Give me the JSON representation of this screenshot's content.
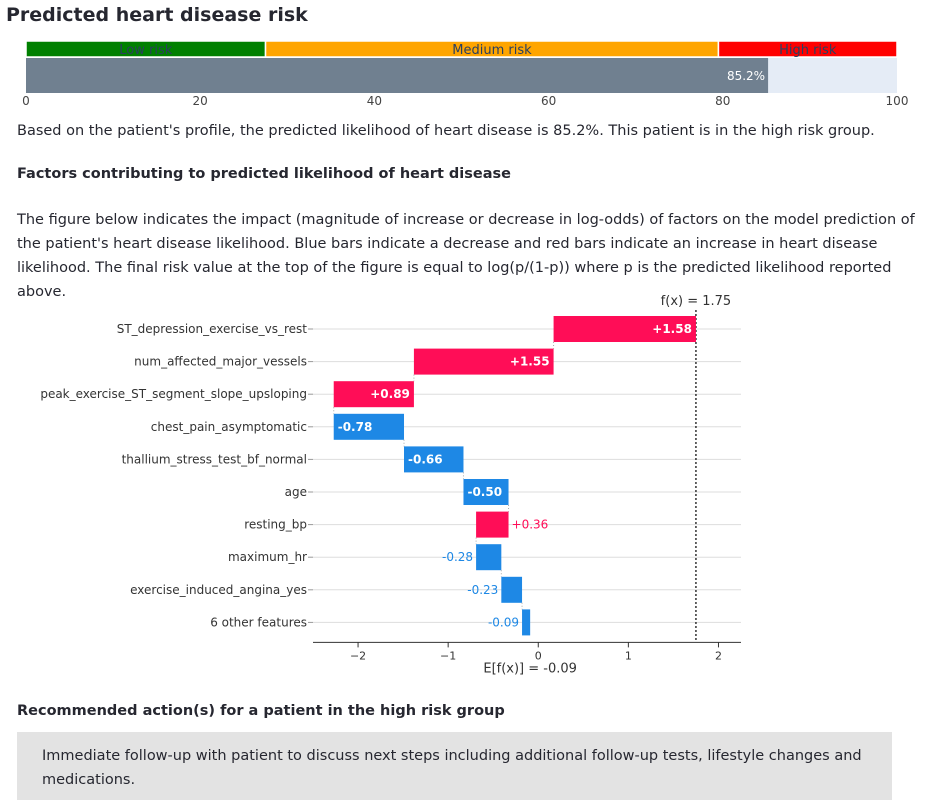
{
  "page_title": "Predicted heart disease risk",
  "gauge": {
    "bands": [
      {
        "label": "Low risk",
        "from": 0,
        "to": 27.5,
        "color": "#008000"
      },
      {
        "label": "Medium risk",
        "from": 27.5,
        "to": 79.5,
        "color": "#ffa500"
      },
      {
        "label": "High risk",
        "from": 79.5,
        "to": 100,
        "color": "#ff0000"
      }
    ],
    "value": 85.2,
    "value_label": "85.2%",
    "axis_min": 0,
    "axis_max": 100,
    "ticks": [
      0,
      20,
      40,
      60,
      80,
      100
    ],
    "bar_color": "#708090",
    "track_color": "#e5ecf6"
  },
  "summary_text": "Based on the patient's profile, the predicted likelihood of heart disease is 85.2%. This patient is in the high risk group.",
  "factors_heading": "Factors contributing to predicted likelihood of heart disease",
  "factors_description": "The figure below indicates the impact (magnitude of increase or decrease in log-odds) of factors on the model prediction of the patient's heart disease likelihood. Blue bars indicate a decrease and red bars indicate an increase in heart disease likelihood. The final risk value at the top of the figure is equal to log(p/(1-p)) where p is the predicted likelihood reported above.",
  "chart_data": {
    "type": "bar",
    "subtype": "waterfall",
    "fx_label": "f(x) = 1.75",
    "fx": 1.75,
    "efx_label": "E[f(x)] = -0.09",
    "efx": -0.09,
    "xlim": [
      -2.5,
      2.25
    ],
    "xticks": [
      -2,
      -1,
      0,
      1,
      2
    ],
    "positive_color": "#ff0d57",
    "negative_color": "#1e88e5",
    "features": [
      {
        "name": "ST_depression_exercise_vs_rest",
        "value": 1.58,
        "label": "+1.58"
      },
      {
        "name": "num_affected_major_vessels",
        "value": 1.55,
        "label": "+1.55"
      },
      {
        "name": "peak_exercise_ST_segment_slope_upsloping",
        "value": 0.89,
        "label": "+0.89"
      },
      {
        "name": "chest_pain_asymptomatic",
        "value": -0.78,
        "label": "-0.78"
      },
      {
        "name": "thallium_stress_test_bf_normal",
        "value": -0.66,
        "label": "-0.66"
      },
      {
        "name": "age",
        "value": -0.5,
        "label": "-0.50"
      },
      {
        "name": "resting_bp",
        "value": 0.36,
        "label": "+0.36"
      },
      {
        "name": "maximum_hr",
        "value": -0.28,
        "label": "-0.28"
      },
      {
        "name": "exercise_induced_angina_yes",
        "value": -0.23,
        "label": "-0.23"
      },
      {
        "name": "6 other features",
        "value": -0.09,
        "label": "-0.09"
      }
    ]
  },
  "recommend_heading": "Recommended action(s) for a patient in the high risk group",
  "recommend_text": "Immediate follow-up with patient to discuss next steps including additional follow-up tests, lifestyle changes and medications."
}
